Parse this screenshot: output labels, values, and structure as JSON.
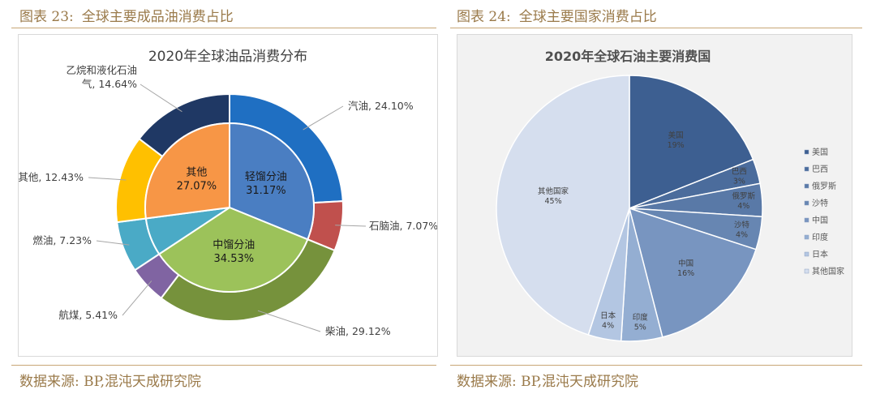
{
  "figure_left": {
    "label": "图表 23:",
    "caption": "全球主要成品油消费占比",
    "source": "数据来源: BP,混沌天成研究院"
  },
  "figure_right": {
    "label": "图表 24:",
    "caption": "全球主要国家消费占比",
    "source": "数据来源: BP,混沌天成研究院"
  },
  "chart_data": [
    {
      "type": "pie",
      "subtype": "nested-donut",
      "title": "2020年全球油品消费分布",
      "inner": [
        {
          "name": "轻馏分油",
          "value": 31.17,
          "label": "31.17%",
          "color": "#4a7ec2"
        },
        {
          "name": "中馏分油",
          "value": 34.53,
          "label": "34.53%",
          "color": "#9cc25a"
        },
        {
          "name": "",
          "value": 7.23,
          "label": "",
          "color": "#4aaac6"
        },
        {
          "name": "其他",
          "value": 27.07,
          "label": "27.07%",
          "color": "#f79646"
        }
      ],
      "outer": [
        {
          "name": "汽油",
          "value": 24.1,
          "label": "汽油, 24.10%",
          "color": "#1f6fc2"
        },
        {
          "name": "石脑油",
          "value": 7.07,
          "label": "石脑油, 7.07%",
          "color": "#c0504d"
        },
        {
          "name": "柴油",
          "value": 29.12,
          "label": "柴油, 29.12%",
          "color": "#76923c"
        },
        {
          "name": "航煤",
          "value": 5.41,
          "label": "航煤, 5.41%",
          "color": "#8064a2"
        },
        {
          "name": "燃油",
          "value": 7.23,
          "label": "燃油, 7.23%",
          "color": "#4aaac6"
        },
        {
          "name": "其他",
          "value": 12.43,
          "label": "其他, 12.43%",
          "color": "#ffc000"
        },
        {
          "name": "乙烷和液化石油气",
          "value": 14.64,
          "label_lines": [
            "乙烷和液化石油",
            "气, 14.64%"
          ],
          "color": "#1f3864"
        }
      ]
    },
    {
      "type": "pie",
      "title": "2020年全球石油主要消费国",
      "legend": "right",
      "slices": [
        {
          "name": "美国",
          "value": 19,
          "label": "19%",
          "color": "#3d5f91"
        },
        {
          "name": "巴西",
          "value": 3,
          "label": "3%",
          "color": "#4b6c9c"
        },
        {
          "name": "俄罗斯",
          "value": 4,
          "label": "4%",
          "color": "#5979a7"
        },
        {
          "name": "沙特",
          "value": 4,
          "label": "4%",
          "color": "#6786b2"
        },
        {
          "name": "中国",
          "value": 16,
          "label": "16%",
          "color": "#7895c0"
        },
        {
          "name": "印度",
          "value": 5,
          "label": "5%",
          "color": "#94aed2"
        },
        {
          "name": "日本",
          "value": 4,
          "label": "4%",
          "color": "#b3c6e2"
        },
        {
          "name": "其他国家",
          "value": 45,
          "label": "45%",
          "color": "#d5deee"
        }
      ]
    }
  ]
}
